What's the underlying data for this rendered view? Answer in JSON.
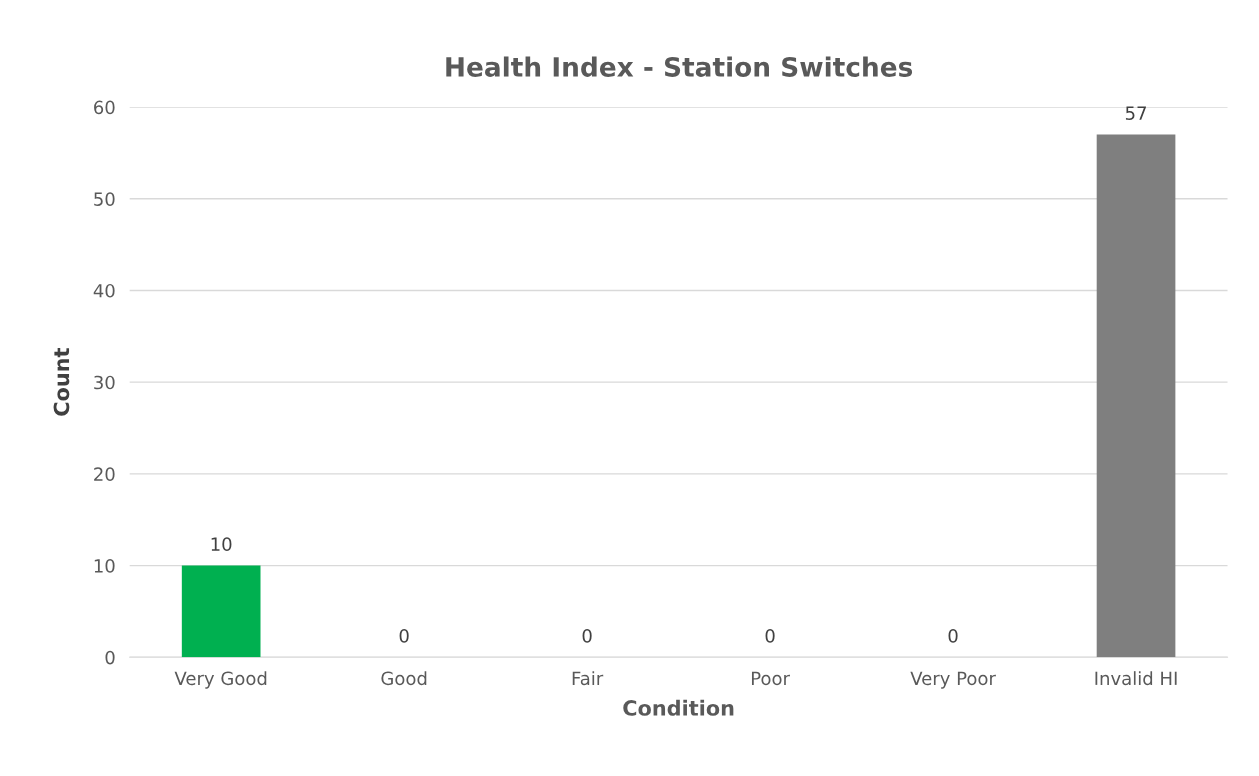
{
  "chart_data": {
    "type": "bar",
    "title": "Health Index - Station Switches",
    "xlabel": "Condition",
    "ylabel": "Count",
    "categories": [
      "Very Good",
      "Good",
      "Fair",
      "Poor",
      "Very Poor",
      "Invalid HI"
    ],
    "values": [
      10,
      0,
      0,
      0,
      0,
      57
    ],
    "colors": [
      "#00b050",
      "#00b050",
      "#00b050",
      "#00b050",
      "#00b050",
      "#7f7f7f"
    ],
    "ylim": [
      0,
      60
    ],
    "yticks": [
      0,
      10,
      20,
      30,
      40,
      50,
      60
    ],
    "grid": "y",
    "data_labels": true
  }
}
